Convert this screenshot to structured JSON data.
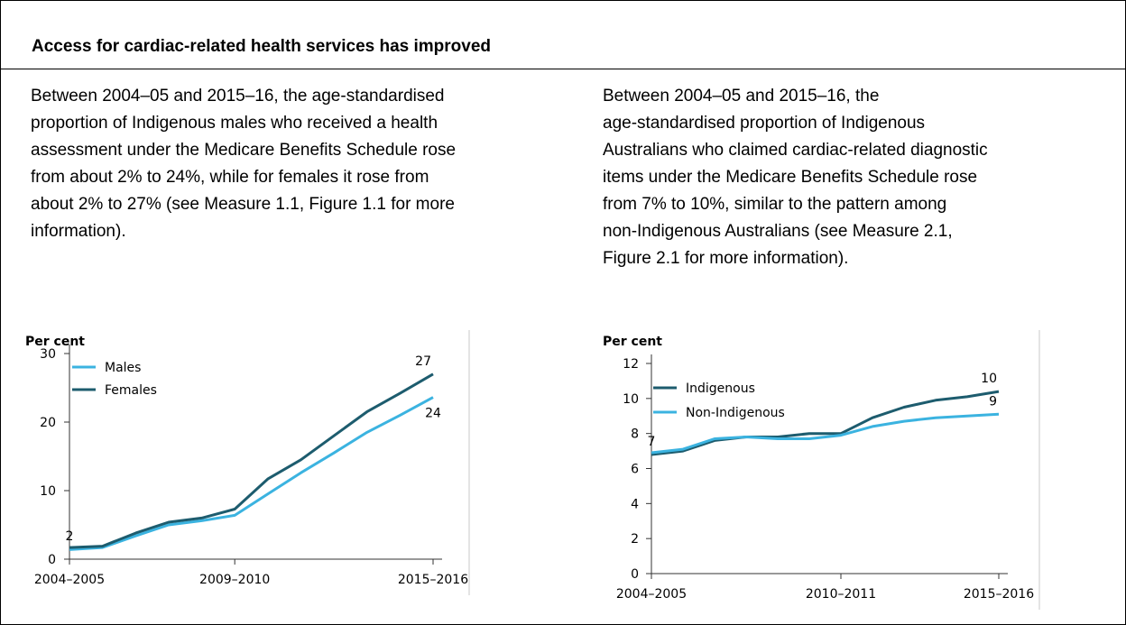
{
  "title": "Access for cardiac-related health services has improved",
  "left_text": [
    "Between 2004–05 and 2015–16, the age-standardised",
    "proportion of Indigenous males who received a health",
    "assessment under the Medicare Benefits Schedule rose",
    "from about 2% to 24%, while for females it rose from",
    "about 2% to 27% (see Measure 1.1, Figure 1.1 for more",
    "information)."
  ],
  "right_text": [
    "Between 2004–05 and 2015–16, the",
    "age-standardised proportion of Indigenous",
    "Australians who claimed cardiac-related diagnostic",
    "items under the Medicare Benefits Schedule rose",
    "from 7% to 10%, similar to the pattern among",
    "non-Indigenous Australians (see Measure 2.1,",
    "Figure 2.1 for more information)."
  ],
  "chart_data": [
    {
      "type": "line",
      "ylabel": "Per cent",
      "ylim": [
        0,
        30
      ],
      "yticks": [
        0,
        10,
        20,
        30
      ],
      "x": [
        2005,
        2006,
        2007,
        2008,
        2009,
        2010,
        2011,
        2012,
        2013,
        2014,
        2015,
        2016
      ],
      "xtick_labels": [
        {
          "x": 2005,
          "label": "2004–2005"
        },
        {
          "x": 2010,
          "label": "2009–2010"
        },
        {
          "x": 2016,
          "label": "2015–2016"
        }
      ],
      "legend_position": "top-left",
      "series": [
        {
          "name": "Males",
          "color": "#3bb3e0",
          "values": [
            1.4,
            1.7,
            3.4,
            5.0,
            5.6,
            6.4,
            9.5,
            12.6,
            15.5,
            18.5,
            21.0,
            23.6
          ]
        },
        {
          "name": "Females",
          "color": "#1d5c6e",
          "values": [
            1.7,
            1.9,
            3.8,
            5.4,
            6.0,
            7.3,
            11.7,
            14.5,
            18.0,
            21.5,
            24.2,
            27.0
          ]
        }
      ],
      "data_labels": [
        {
          "text": "2",
          "x": 2005,
          "y": 1.7,
          "pos": "above"
        },
        {
          "text": "27",
          "x": 2016,
          "y": 27.0,
          "pos": "above-left"
        },
        {
          "text": "24",
          "x": 2016,
          "y": 23.6,
          "pos": "below"
        }
      ]
    },
    {
      "type": "line",
      "ylabel": "Per cent",
      "ylim": [
        0,
        12
      ],
      "yticks": [
        0,
        2,
        4,
        6,
        8,
        10,
        12
      ],
      "x": [
        2005,
        2006,
        2007,
        2008,
        2009,
        2010,
        2011,
        2012,
        2013,
        2014,
        2015,
        2016
      ],
      "xtick_labels": [
        {
          "x": 2005,
          "label": "2004–2005"
        },
        {
          "x": 2011,
          "label": "2010–2011"
        },
        {
          "x": 2016,
          "label": "2015–2016"
        }
      ],
      "legend_position": "top-left",
      "series": [
        {
          "name": "Indigenous",
          "color": "#1d5c6e",
          "values": [
            6.8,
            7.0,
            7.6,
            7.8,
            7.8,
            8.0,
            8.0,
            8.9,
            9.5,
            9.9,
            10.1,
            10.4
          ]
        },
        {
          "name": "Non-Indigenous",
          "color": "#3bb3e0",
          "values": [
            6.9,
            7.1,
            7.7,
            7.8,
            7.7,
            7.7,
            7.9,
            8.4,
            8.7,
            8.9,
            9.0,
            9.1
          ]
        }
      ],
      "data_labels": [
        {
          "text": "7",
          "x": 2005,
          "y": 6.9,
          "pos": "above"
        },
        {
          "text": "10",
          "x": 2016,
          "y": 10.4,
          "pos": "above-left"
        },
        {
          "text": "9",
          "x": 2016,
          "y": 9.1,
          "pos": "above-left"
        }
      ]
    }
  ]
}
